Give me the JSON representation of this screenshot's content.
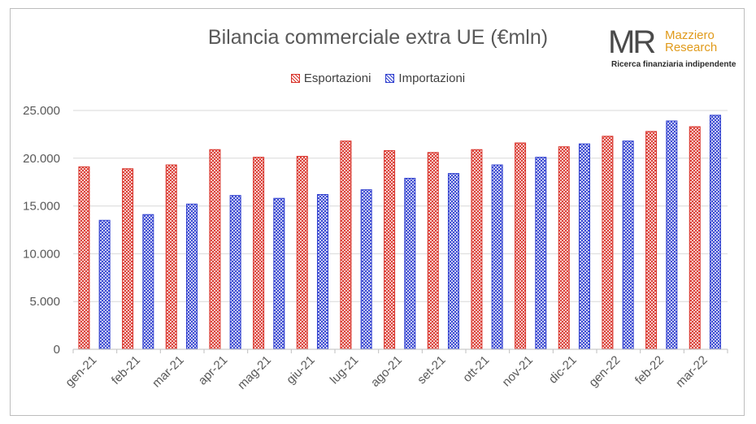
{
  "title": "Bilancia commerciale extra UE (€mln)",
  "logo": {
    "mark": "MR",
    "name_line1": "Mazziero",
    "name_line2": "Research",
    "tagline": "Ricerca finanziaria indipendente"
  },
  "colors": {
    "export": "#d9342b",
    "import": "#2f3fcf",
    "grid": "#d9d9d9",
    "axis_text": "#595959"
  },
  "chart_data": {
    "type": "bar",
    "title": "Bilancia commerciale extra UE (€mln)",
    "categories": [
      "gen-21",
      "feb-21",
      "mar-21",
      "apr-21",
      "mag-21",
      "giu-21",
      "lug-21",
      "ago-21",
      "set-21",
      "ott-21",
      "nov-21",
      "dic-21",
      "gen-22",
      "feb-22",
      "mar-22"
    ],
    "series": [
      {
        "name": "Esportazioni",
        "values": [
          19100,
          18900,
          19300,
          20900,
          20100,
          20200,
          21800,
          20800,
          20600,
          20900,
          21600,
          21200,
          22300,
          22800,
          23300
        ]
      },
      {
        "name": "Importazioni",
        "values": [
          13500,
          14100,
          15200,
          16100,
          15800,
          16200,
          16700,
          17900,
          18400,
          19300,
          20100,
          21500,
          21800,
          23900,
          24500
        ]
      }
    ],
    "ylim": [
      0,
      25000
    ],
    "yticks": [
      0,
      5000,
      10000,
      15000,
      20000,
      25000
    ],
    "ytick_labels": [
      "0",
      "5.000",
      "10.000",
      "15.000",
      "20.000",
      "25.000"
    ],
    "legend_position": "top",
    "grid": true,
    "xlabel": "",
    "ylabel": ""
  }
}
